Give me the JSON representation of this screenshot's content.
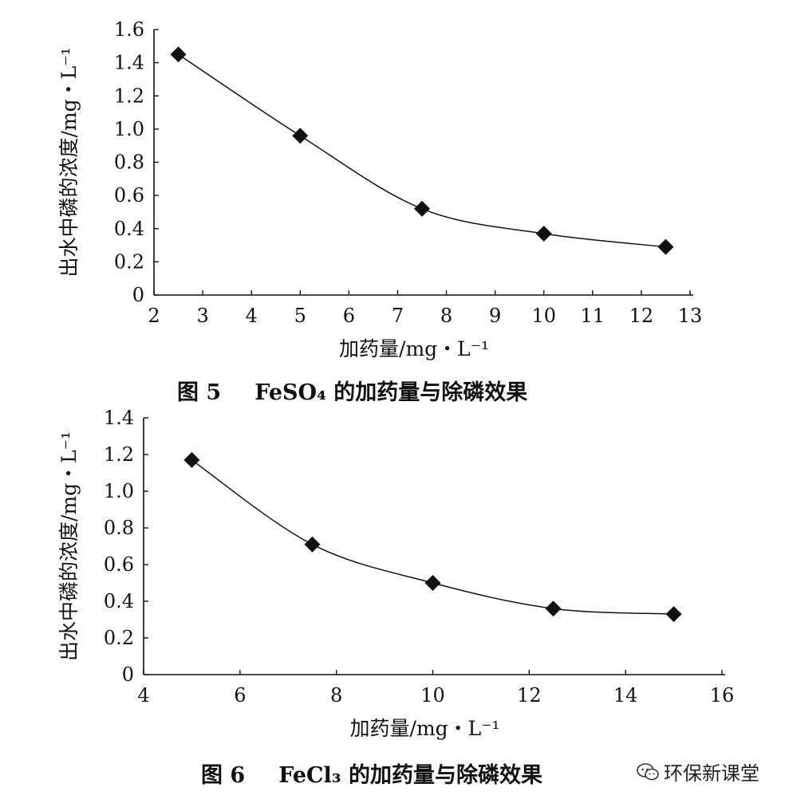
{
  "chart_data": [
    {
      "type": "line",
      "xlabel": "加药量/mg・L⁻¹",
      "ylabel": "出水中磷的浓度/mg・L⁻¹",
      "xlim": [
        2,
        13
      ],
      "ylim": [
        0,
        1.6
      ],
      "xticks": [
        "2",
        "3",
        "4",
        "5",
        "6",
        "7",
        "8",
        "9",
        "10",
        "11",
        "12",
        "13"
      ],
      "yticks": [
        "0",
        "0.2",
        "0.4",
        "0.6",
        "0.8",
        "1.0",
        "1.2",
        "1.4",
        "1.6"
      ],
      "x": [
        2.5,
        5,
        7.5,
        10,
        12.5
      ],
      "y": [
        1.45,
        0.96,
        0.52,
        0.37,
        0.29
      ],
      "marker": "diamond",
      "grid": false
    },
    {
      "type": "line",
      "xlabel": "加药量/mg・L⁻¹",
      "ylabel": "出水中磷的浓度/mg・L⁻¹",
      "xlim": [
        4,
        16
      ],
      "ylim": [
        0,
        1.4
      ],
      "xticks": [
        "4",
        "6",
        "8",
        "10",
        "12",
        "14",
        "16"
      ],
      "yticks": [
        "0",
        "0.2",
        "0.4",
        "0.6",
        "0.8",
        "1.0",
        "1.2",
        "1.4"
      ],
      "x": [
        5,
        7.5,
        10,
        12.5,
        15
      ],
      "y": [
        1.17,
        0.71,
        0.5,
        0.36,
        0.33
      ],
      "marker": "diamond",
      "grid": false
    }
  ],
  "captions": [
    {
      "fig": "图 5",
      "text": "FeSO₄ 的加药量与除磷效果"
    },
    {
      "fig": "图 6",
      "text": "FeCl₃ 的加药量与除磷效果"
    }
  ],
  "watermark": {
    "text": "环保新课堂",
    "icon": "wechat-icon"
  }
}
